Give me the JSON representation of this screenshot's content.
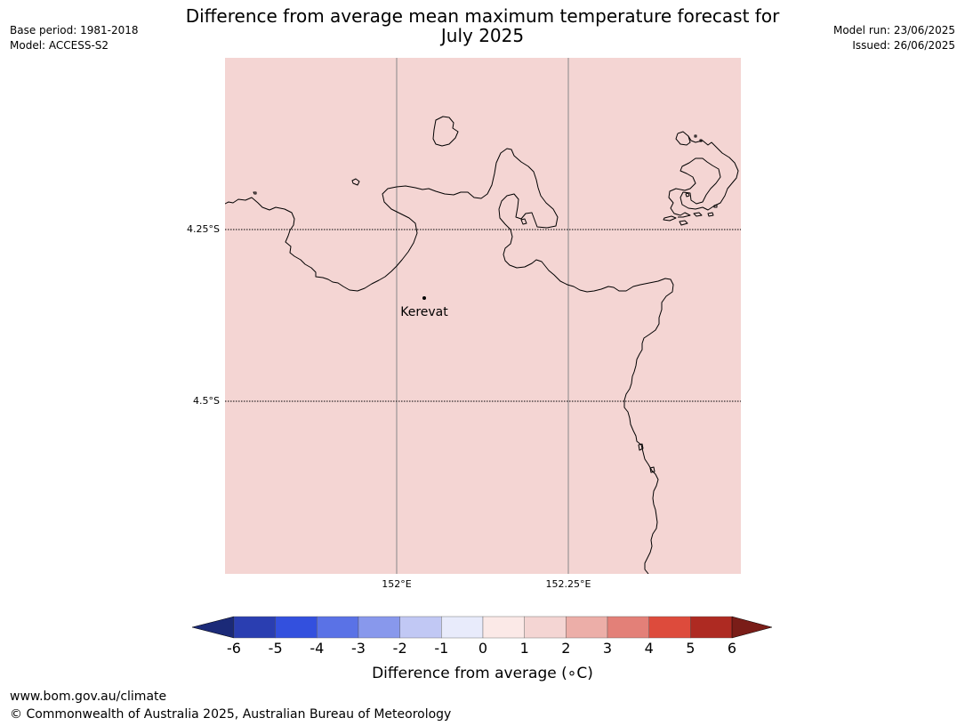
{
  "title": {
    "line1": "Difference from average mean maximum temperature forecast for",
    "line2": "July 2025"
  },
  "meta_left": {
    "base_period": "Base period: 1981-2018",
    "model": "Model: ACCESS-S2"
  },
  "meta_right": {
    "model_run": "Model run: 23/06/2025",
    "issued": "Issued: 26/06/2025"
  },
  "map": {
    "fill_color": "#f4d5d3",
    "place_label": "Kerevat",
    "lat_labels": [
      "4.25°S",
      "4.5°S"
    ],
    "lon_labels": [
      "152°E",
      "152.25°E"
    ]
  },
  "colorbar": {
    "title": "Difference from average (∘C)",
    "ticks": [
      "-6",
      "-5",
      "-4",
      "-3",
      "-2",
      "-1",
      "0",
      "1",
      "2",
      "3",
      "4",
      "5",
      "6"
    ],
    "colors": {
      "below": "#1b2a78",
      "bins": [
        "#2a3eb1",
        "#3350de",
        "#5a72e6",
        "#8898ec",
        "#c1c8f4",
        "#e8ebfb",
        "#fbe9e7",
        "#f4d5d3",
        "#ecaea8",
        "#e38078",
        "#dd4b3c",
        "#ae2a22"
      ],
      "above": "#7a1d18"
    }
  },
  "footer": {
    "url": "www.bom.gov.au/climate",
    "copyright": "© Commonwealth of Australia 2025, Australian Bureau of Meteorology"
  }
}
